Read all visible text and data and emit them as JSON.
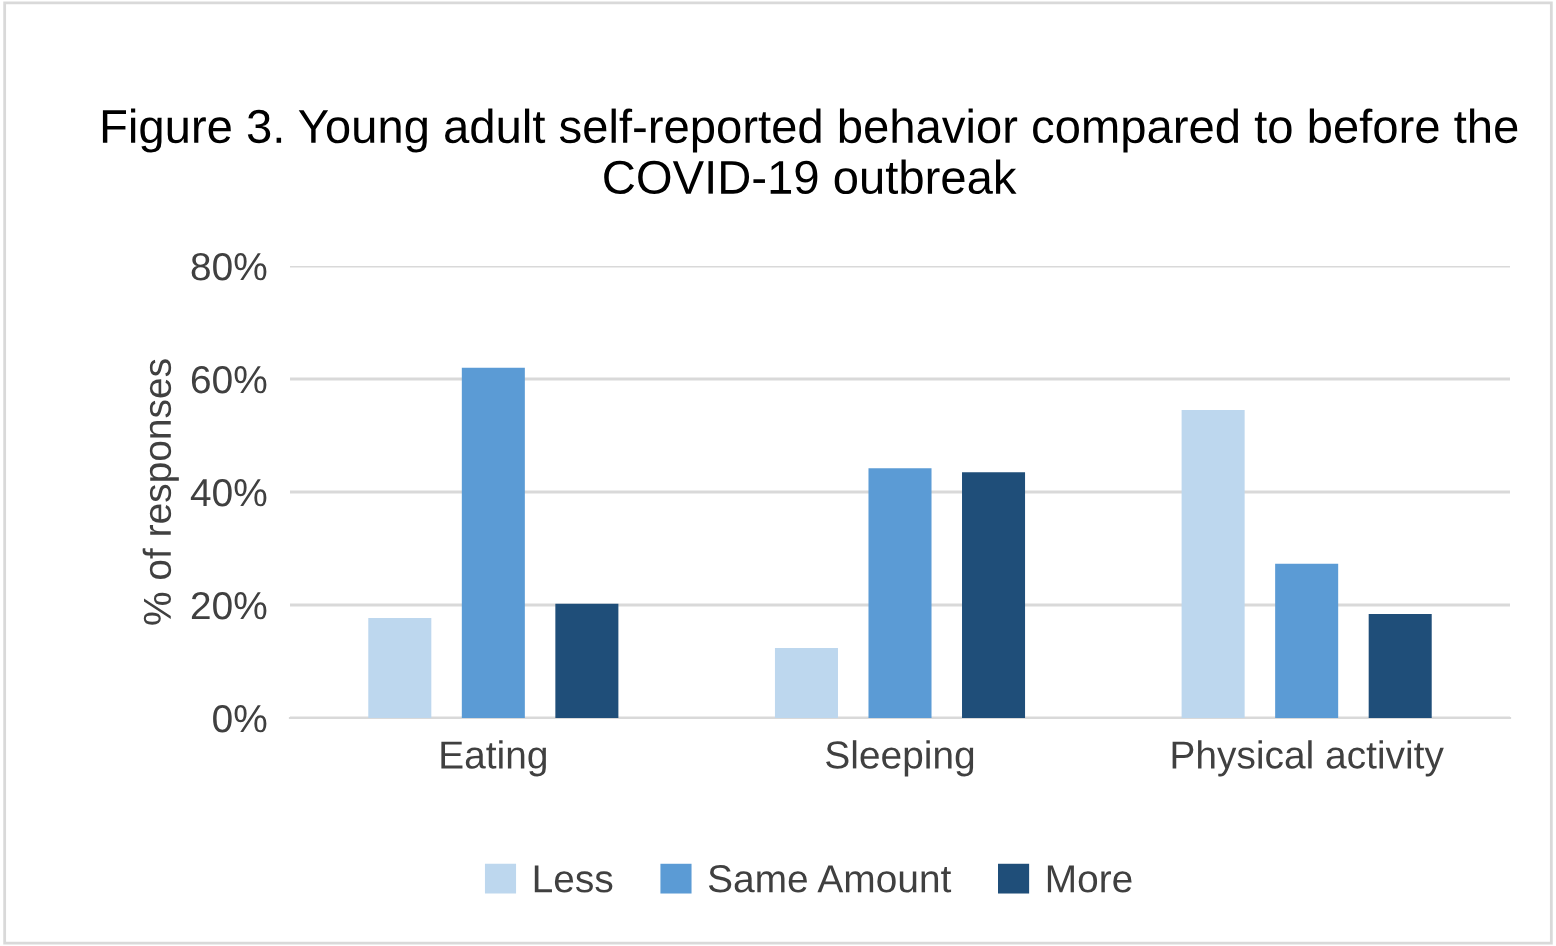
{
  "chart_data": {
    "type": "bar",
    "title": "Figure 3. Young adult self-reported behavior compared to before the COVID-19 outbreak",
    "ylabel": "% of responses",
    "categories": [
      "Eating",
      "Sleeping",
      "Physical activity"
    ],
    "series": [
      {
        "name": "Less",
        "color": "#bdd7ee",
        "values": [
          17.7,
          12.4,
          54.5
        ]
      },
      {
        "name": "Same Amount",
        "color": "#5b9bd5",
        "values": [
          62,
          44.2,
          27.3
        ]
      },
      {
        "name": "More",
        "color": "#1f4e79",
        "values": [
          20.2,
          43.5,
          18.4
        ]
      }
    ],
    "ylim": [
      0,
      80
    ],
    "yticks": [
      {
        "value": 0,
        "label": "0%"
      },
      {
        "value": 20,
        "label": "20%"
      },
      {
        "value": 40,
        "label": "40%"
      },
      {
        "value": 60,
        "label": "60%"
      },
      {
        "value": 80,
        "label": "80%"
      }
    ],
    "grid": "y",
    "legend": "bottom"
  }
}
